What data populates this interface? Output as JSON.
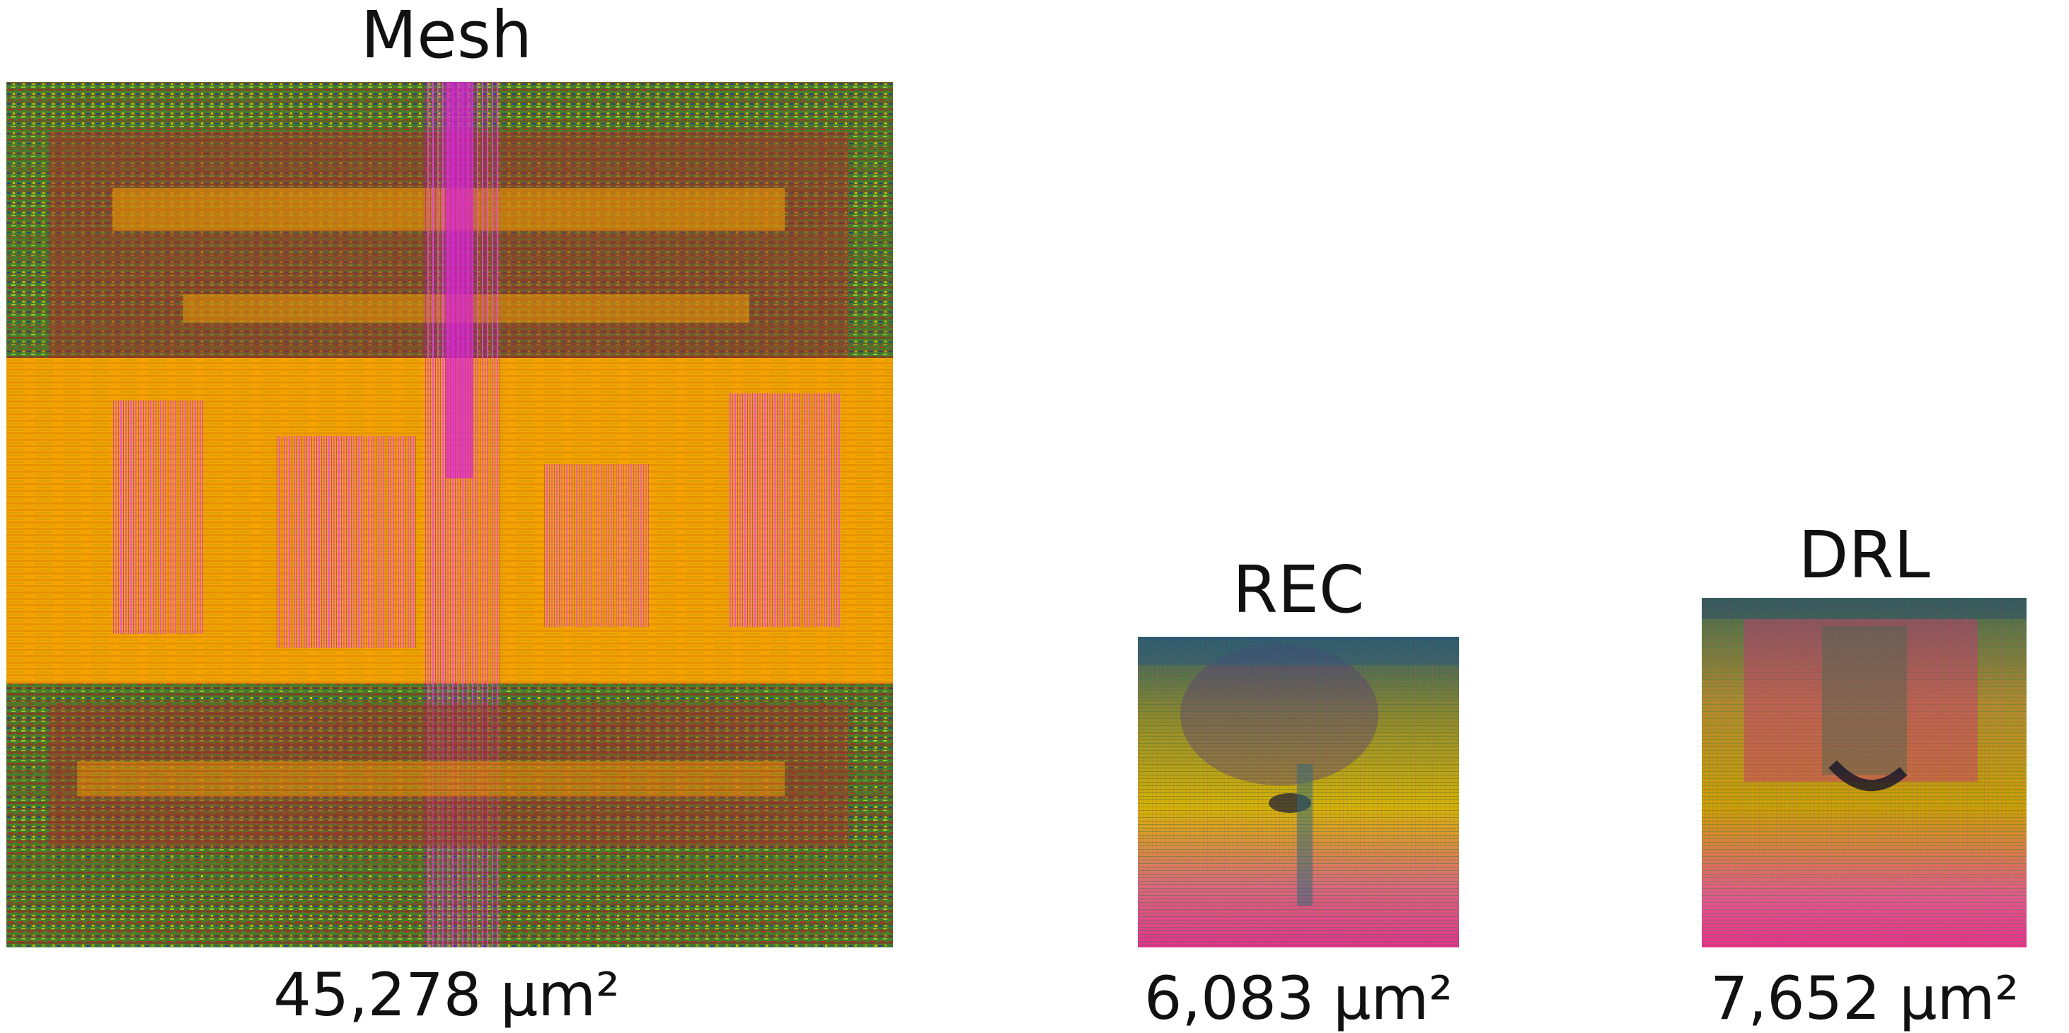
{
  "layouts": [
    {
      "id": "mesh",
      "name": "Mesh",
      "area": "45,278 µm²",
      "colors": {
        "base": "#f5a300",
        "dense": "#a8322a",
        "edge": "#3c8a2c",
        "hot": "#d81fd8",
        "dark": "#1a2a6e",
        "lime": "#9acd32"
      }
    },
    {
      "id": "rec",
      "name": "REC",
      "area": "6,083 µm²",
      "colors": {
        "base": "#d9b400",
        "top": "#2c5a7a",
        "bottom": "#e0328c",
        "dark": "#1a1a3a"
      }
    },
    {
      "id": "drl",
      "name": "DRL",
      "area": "7,652 µm²",
      "colors": {
        "base": "#cda000",
        "top": "#3c6a50",
        "center": "#c83278",
        "bottom": "#ea2f8c",
        "dark": "#141428"
      }
    }
  ]
}
